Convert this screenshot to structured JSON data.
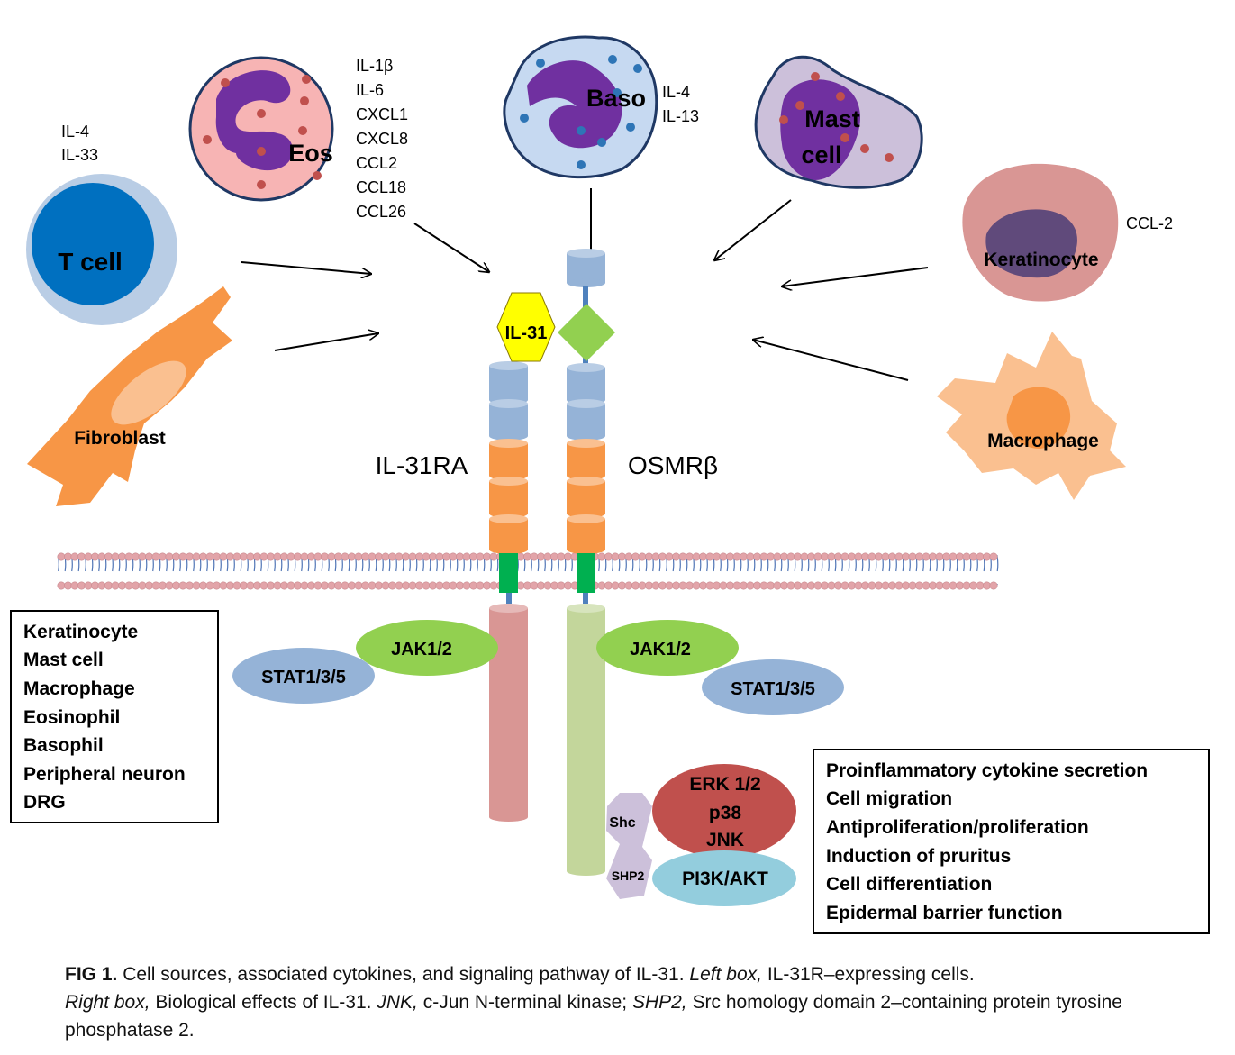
{
  "cells": {
    "tcell": {
      "label": "T cell",
      "cytokines": [
        "IL-4",
        "IL-33"
      ]
    },
    "eos": {
      "label": "Eos",
      "cytokines": [
        "IL-1β",
        "IL-6",
        "CXCL1",
        "CXCL8",
        "CCL2",
        "CCL18",
        "CCL26"
      ]
    },
    "baso": {
      "label": "Baso",
      "cytokines": [
        "IL-4",
        "IL-13"
      ]
    },
    "mast": {
      "label_line1": "Mast",
      "label_line2": "cell"
    },
    "keratinocyte": {
      "label": "Keratinocyte",
      "cytokines": [
        "CCL-2"
      ]
    },
    "fibroblast": {
      "label": "Fibroblast"
    },
    "macrophage": {
      "label": "Macrophage"
    }
  },
  "receptor": {
    "ligand": "IL-31",
    "left_chain": "IL-31RA",
    "right_chain": "OSMRβ"
  },
  "signaling": {
    "jak_left": "JAK1/2",
    "stat_left": "STAT1/3/5",
    "jak_right": "JAK1/2",
    "stat_right": "STAT1/3/5",
    "mapk": [
      "ERK 1/2",
      "p38",
      "JNK"
    ],
    "pi3k": "PI3K/AKT",
    "shc": "Shc",
    "shp2": "SHP2"
  },
  "left_box": [
    "Keratinocyte",
    "Mast cell",
    "Macrophage",
    "Eosinophil",
    "Basophil",
    "Peripheral neuron",
    "DRG"
  ],
  "right_box": [
    "Proinflammatory cytokine secretion",
    "Cell migration",
    "Antiproliferation/proliferation",
    "Induction of pruritus",
    "Cell differentiation",
    "Epidermal barrier function"
  ],
  "caption": {
    "fig_label": "FIG 1.",
    "sentence1": "Cell sources, associated cytokines, and signaling pathway of IL-31.",
    "left_box_label": "Left box,",
    "left_box_text": "IL-31R–expressing cells.",
    "right_box_label": "Right box,",
    "right_box_text": "Biological effects of IL-31.",
    "jnk_label": "JNK,",
    "jnk_text": "c-Jun N-terminal kinase;",
    "shp2_label": "SHP2,",
    "shp2_text": "Src homology domain 2–containing protein tyrosine phosphatase 2."
  },
  "colors": {
    "membrane": "#e2a4a9",
    "membrane_tail": "#5c7fb8",
    "blue_domain": "#95b3d7",
    "orange_domain": "#f79646",
    "tm_green": "#00b050",
    "jak": "#92d050",
    "stat": "#95b3d7",
    "il31": "#ffff00",
    "mapk": "#c0504d",
    "pi3k": "#93cddd",
    "shc": "#ccc0da"
  }
}
